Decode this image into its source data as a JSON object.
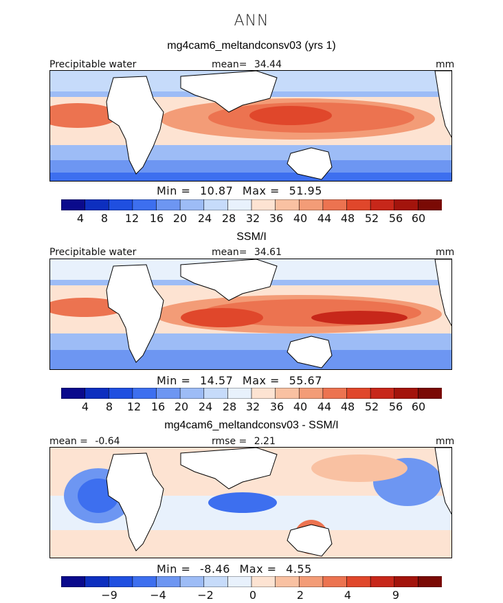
{
  "figure_title": "ANN",
  "chart_data": [
    {
      "type": "heatmap",
      "title": "mg4cam6_meltandconsv03 (yrs 1)",
      "variable": "Precipitable water",
      "units": "mm",
      "stat_label": "mean=",
      "stat_value": "34.44",
      "min_label": "Min =",
      "min_value": "10.87",
      "max_label": "Max =",
      "max_value": "51.95",
      "colorbar_ticks": [
        "4",
        "8",
        "12",
        "16",
        "20",
        "24",
        "28",
        "32",
        "36",
        "40",
        "44",
        "48",
        "52",
        "56",
        "60"
      ]
    },
    {
      "type": "heatmap",
      "title": "SSM/I",
      "variable": "Precipitable water",
      "units": "mm",
      "stat_label": "mean=",
      "stat_value": "34.61",
      "min_label": "Min =",
      "min_value": "14.57",
      "max_label": "Max =",
      "max_value": "55.67",
      "colorbar_ticks": [
        "4",
        "8",
        "12",
        "16",
        "20",
        "24",
        "28",
        "32",
        "36",
        "40",
        "44",
        "48",
        "52",
        "56",
        "60"
      ]
    },
    {
      "type": "heatmap",
      "title": "mg4cam6_meltandconsv03 - SSM/I",
      "units": "mm",
      "stat_label": "mean =",
      "stat_value": "-0.64",
      "rmse_label": "rmse =",
      "rmse_value": "2.21",
      "min_label": "Min =",
      "min_value": "-8.46",
      "max_label": "Max =",
      "max_value": "4.55",
      "colorbar_ticks": [
        "−9",
        "−4",
        "−2",
        "0",
        "2",
        "4",
        "9"
      ]
    }
  ],
  "colors": {
    "colorbar": [
      "#0a0a8c",
      "#0d2fbf",
      "#1f4fe0",
      "#3d6fef",
      "#6d96f2",
      "#9dbcf6",
      "#c6dbfa",
      "#e8f1fc",
      "#fde3d2",
      "#f9c1a2",
      "#f39c77",
      "#ec7350",
      "#e0472b",
      "#c7271a",
      "#a3140c",
      "#7a0a05"
    ],
    "land": "#ffffff",
    "coast": "#000000"
  }
}
